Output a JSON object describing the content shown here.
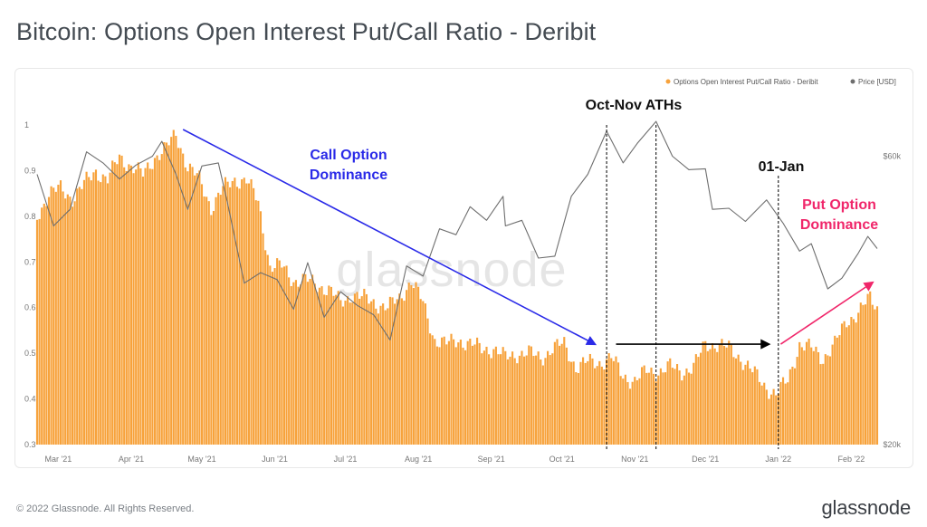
{
  "title": "Bitcoin: Options Open Interest Put/Call Ratio - Deribit",
  "footer": {
    "copyright": "© 2022 Glassnode. All Rights Reserved.",
    "logo": "glassnode"
  },
  "watermark": "glassnode",
  "colors": {
    "bars": "#f7a23b",
    "price_line": "#6e6e6e",
    "call_arrow": "#2a2ae8",
    "put_arrow": "#f0266a",
    "flat_arrow": "#000000",
    "title": "#444b52"
  },
  "chart_data": {
    "type": "bar",
    "legend": {
      "placement": "top-right",
      "entries": [
        {
          "name": "Options Open Interest Put/Call Ratio - Deribit",
          "color": "#f7a23b"
        },
        {
          "name": "Price [USD]",
          "color": "#6e6e6e"
        }
      ]
    },
    "x_tick_labels": [
      "Mar '21",
      "Apr '21",
      "May '21",
      "Jun '21",
      "Jul '21",
      "Aug '21",
      "Sep '21",
      "Oct '21",
      "Nov '21",
      "Dec '21",
      "Jan '22",
      "Feb '22"
    ],
    "x_range": [
      "2021-02-20",
      "2022-02-12"
    ],
    "y_left": {
      "ticks": [
        "1",
        "0.9",
        "0.8",
        "0.7",
        "0.6",
        "0.5",
        "0.4",
        "0.3"
      ],
      "range": [
        0.3,
        1.0
      ]
    },
    "y_right": {
      "ticks": [
        "$60k",
        "$20k"
      ],
      "scale": "log",
      "range": [
        20000,
        69000
      ]
    },
    "series": [
      {
        "name": "Options Open Interest Put/Call Ratio - Deribit",
        "kind": "bar",
        "axis": "left",
        "points": [
          [
            "2021-02-20",
            0.8
          ],
          [
            "2021-02-25",
            0.85
          ],
          [
            "2021-03-02",
            0.86
          ],
          [
            "2021-03-07",
            0.84
          ],
          [
            "2021-03-12",
            0.87
          ],
          [
            "2021-03-17",
            0.9
          ],
          [
            "2021-03-22",
            0.88
          ],
          [
            "2021-03-27",
            0.93
          ],
          [
            "2021-04-01",
            0.91
          ],
          [
            "2021-04-06",
            0.89
          ],
          [
            "2021-04-11",
            0.93
          ],
          [
            "2021-04-16",
            0.95
          ],
          [
            "2021-04-20",
            0.98
          ],
          [
            "2021-04-25",
            0.91
          ],
          [
            "2021-04-30",
            0.88
          ],
          [
            "2021-05-05",
            0.82
          ],
          [
            "2021-05-10",
            0.86
          ],
          [
            "2021-05-15",
            0.88
          ],
          [
            "2021-05-20",
            0.88
          ],
          [
            "2021-05-25",
            0.83
          ],
          [
            "2021-05-30",
            0.69
          ],
          [
            "2021-06-04",
            0.69
          ],
          [
            "2021-06-09",
            0.66
          ],
          [
            "2021-06-14",
            0.66
          ],
          [
            "2021-06-19",
            0.65
          ],
          [
            "2021-06-24",
            0.64
          ],
          [
            "2021-06-29",
            0.61
          ],
          [
            "2021-07-04",
            0.63
          ],
          [
            "2021-07-09",
            0.62
          ],
          [
            "2021-07-14",
            0.61
          ],
          [
            "2021-07-19",
            0.6
          ],
          [
            "2021-07-24",
            0.62
          ],
          [
            "2021-07-29",
            0.66
          ],
          [
            "2021-08-03",
            0.61
          ],
          [
            "2021-08-08",
            0.53
          ],
          [
            "2021-08-13",
            0.52
          ],
          [
            "2021-08-18",
            0.53
          ],
          [
            "2021-08-23",
            0.52
          ],
          [
            "2021-08-28",
            0.51
          ],
          [
            "2021-09-02",
            0.51
          ],
          [
            "2021-09-07",
            0.49
          ],
          [
            "2021-09-12",
            0.5
          ],
          [
            "2021-09-17",
            0.5
          ],
          [
            "2021-09-22",
            0.49
          ],
          [
            "2021-09-27",
            0.51
          ],
          [
            "2021-10-02",
            0.52
          ],
          [
            "2021-10-07",
            0.47
          ],
          [
            "2021-10-12",
            0.48
          ],
          [
            "2021-10-17",
            0.48
          ],
          [
            "2021-10-22",
            0.49
          ],
          [
            "2021-10-27",
            0.45
          ],
          [
            "2021-11-01",
            0.44
          ],
          [
            "2021-11-06",
            0.46
          ],
          [
            "2021-11-11",
            0.46
          ],
          [
            "2021-11-16",
            0.47
          ],
          [
            "2021-11-21",
            0.46
          ],
          [
            "2021-11-26",
            0.47
          ],
          [
            "2021-12-01",
            0.52
          ],
          [
            "2021-12-06",
            0.52
          ],
          [
            "2021-12-11",
            0.51
          ],
          [
            "2021-12-16",
            0.49
          ],
          [
            "2021-12-21",
            0.46
          ],
          [
            "2021-12-26",
            0.43
          ],
          [
            "2021-12-31",
            0.41
          ],
          [
            "2022-01-05",
            0.44
          ],
          [
            "2022-01-10",
            0.52
          ],
          [
            "2022-01-15",
            0.51
          ],
          [
            "2022-01-20",
            0.49
          ],
          [
            "2022-01-25",
            0.52
          ],
          [
            "2022-01-30",
            0.57
          ],
          [
            "2022-02-04",
            0.59
          ],
          [
            "2022-02-09",
            0.62
          ],
          [
            "2022-02-12",
            0.6
          ]
        ]
      },
      {
        "name": "Price [USD]",
        "kind": "line",
        "axis": "right",
        "points": [
          [
            "2021-02-20",
            56000
          ],
          [
            "2021-02-27",
            46000
          ],
          [
            "2021-03-06",
            49000
          ],
          [
            "2021-03-13",
            61000
          ],
          [
            "2021-03-20",
            58500
          ],
          [
            "2021-03-27",
            55000
          ],
          [
            "2021-04-03",
            58000
          ],
          [
            "2021-04-10",
            60000
          ],
          [
            "2021-04-14",
            63500
          ],
          [
            "2021-04-20",
            56000
          ],
          [
            "2021-04-25",
            49000
          ],
          [
            "2021-05-01",
            57800
          ],
          [
            "2021-05-08",
            58500
          ],
          [
            "2021-05-12",
            50000
          ],
          [
            "2021-05-19",
            37000
          ],
          [
            "2021-05-26",
            38500
          ],
          [
            "2021-06-02",
            37500
          ],
          [
            "2021-06-09",
            33500
          ],
          [
            "2021-06-15",
            40000
          ],
          [
            "2021-06-22",
            32500
          ],
          [
            "2021-06-29",
            35800
          ],
          [
            "2021-07-06",
            34000
          ],
          [
            "2021-07-13",
            32800
          ],
          [
            "2021-07-20",
            29800
          ],
          [
            "2021-07-27",
            39500
          ],
          [
            "2021-08-03",
            38000
          ],
          [
            "2021-08-10",
            45500
          ],
          [
            "2021-08-17",
            44500
          ],
          [
            "2021-08-23",
            49500
          ],
          [
            "2021-08-30",
            47000
          ],
          [
            "2021-09-06",
            51500
          ],
          [
            "2021-09-07",
            46000
          ],
          [
            "2021-09-14",
            47000
          ],
          [
            "2021-09-21",
            40700
          ],
          [
            "2021-09-28",
            41000
          ],
          [
            "2021-10-05",
            51500
          ],
          [
            "2021-10-12",
            56000
          ],
          [
            "2021-10-20",
            66000
          ],
          [
            "2021-10-27",
            58500
          ],
          [
            "2021-11-02",
            63000
          ],
          [
            "2021-11-10",
            68500
          ],
          [
            "2021-11-17",
            60000
          ],
          [
            "2021-11-24",
            57000
          ],
          [
            "2021-12-01",
            57200
          ],
          [
            "2021-12-04",
            49000
          ],
          [
            "2021-12-11",
            49200
          ],
          [
            "2021-12-18",
            46800
          ],
          [
            "2021-12-27",
            50800
          ],
          [
            "2022-01-03",
            46500
          ],
          [
            "2022-01-10",
            41800
          ],
          [
            "2022-01-15",
            43000
          ],
          [
            "2022-01-22",
            36200
          ],
          [
            "2022-01-28",
            37700
          ],
          [
            "2022-02-04",
            41500
          ],
          [
            "2022-02-08",
            44200
          ],
          [
            "2022-02-12",
            42200
          ]
        ]
      }
    ],
    "annotations": [
      {
        "text": "Oct-Nov ATHs",
        "date_lines": [
          "2021-10-20",
          "2021-11-10"
        ]
      },
      {
        "text": "01-Jan",
        "date_lines": [
          "2022-01-01"
        ]
      },
      {
        "text": "Call Option Dominance",
        "arrow": {
          "from": [
            "2021-04-23",
            0.99
          ],
          "to": [
            "2021-10-15",
            0.52
          ]
        }
      },
      {
        "text": "Put Option Dominance",
        "arrow": {
          "from": [
            "2022-01-02",
            0.52
          ],
          "to": [
            "2022-02-10",
            0.655
          ]
        }
      },
      {
        "text": "",
        "arrow": {
          "from": [
            "2021-10-24",
            0.52
          ],
          "to": [
            "2021-12-31",
            0.52
          ]
        }
      }
    ],
    "annotation_lines": {
      "call": [
        "Call Option",
        "Dominance"
      ],
      "put": [
        "Put Option",
        "Dominance"
      ]
    }
  }
}
